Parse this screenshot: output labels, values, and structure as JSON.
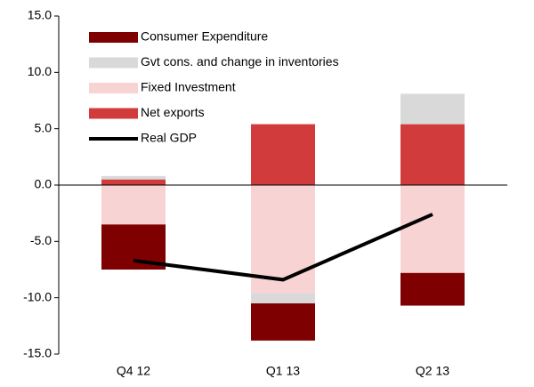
{
  "chart_data": {
    "type": "bar",
    "stacked": true,
    "categories": [
      "Q4 12",
      "Q1 13",
      "Q2 13"
    ],
    "series": [
      {
        "name": "Consumer Expenditure",
        "color": "#7f0000",
        "values": [
          -4.0,
          -3.3,
          -2.9
        ]
      },
      {
        "name": "Gvt cons. and change in inventories",
        "color": "#d9d9d9",
        "values": [
          0.3,
          -0.9,
          2.7
        ]
      },
      {
        "name": "Fixed Investment",
        "color": "#f8d3d3",
        "values": [
          -3.5,
          -9.6,
          -7.8
        ]
      },
      {
        "name": "Net exports",
        "color": "#d13b3b",
        "values": [
          0.5,
          5.4,
          5.4
        ]
      }
    ],
    "line": {
      "name": "Real GDP",
      "color": "#000000",
      "values": [
        -6.7,
        -8.4,
        -2.6
      ]
    },
    "ylim": [
      -15,
      15
    ],
    "yticks": [
      {
        "value": -15,
        "label": "-15.0"
      },
      {
        "value": -10,
        "label": "-10.0"
      },
      {
        "value": -5,
        "label": "-5.0"
      },
      {
        "value": 0,
        "label": "0.0"
      },
      {
        "value": 5,
        "label": "5.0"
      },
      {
        "value": 10,
        "label": "10.0"
      },
      {
        "value": 15,
        "label": "15.0"
      }
    ],
    "legend": "top-left"
  }
}
